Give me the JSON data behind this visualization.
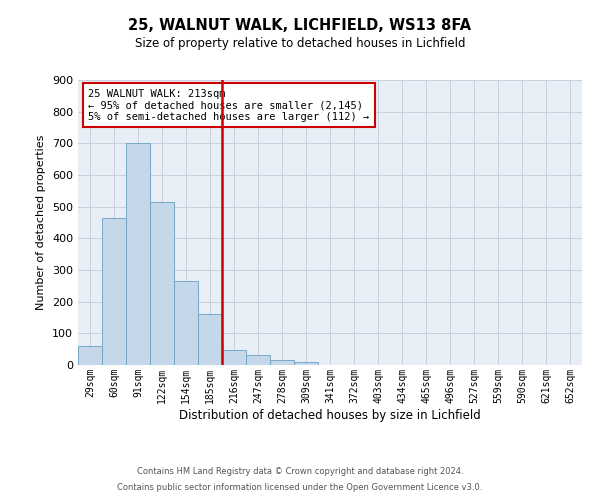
{
  "title1": "25, WALNUT WALK, LICHFIELD, WS13 8FA",
  "title2": "Size of property relative to detached houses in Lichfield",
  "xlabel": "Distribution of detached houses by size in Lichfield",
  "ylabel": "Number of detached properties",
  "bin_labels": [
    "29sqm",
    "60sqm",
    "91sqm",
    "122sqm",
    "154sqm",
    "185sqm",
    "216sqm",
    "247sqm",
    "278sqm",
    "309sqm",
    "341sqm",
    "372sqm",
    "403sqm",
    "434sqm",
    "465sqm",
    "496sqm",
    "527sqm",
    "559sqm",
    "590sqm",
    "621sqm",
    "652sqm"
  ],
  "bar_heights": [
    60,
    465,
    700,
    515,
    265,
    160,
    48,
    33,
    15,
    10,
    0,
    0,
    0,
    0,
    0,
    0,
    0,
    0,
    0,
    0,
    0
  ],
  "bar_color": "#c5d8ea",
  "bar_edge_color": "#6a9fc0",
  "grid_color": "#c8d0dc",
  "background_color": "#e8eef5",
  "vline_color": "#cc0000",
  "annotation_text": "25 WALNUT WALK: 213sqm\n← 95% of detached houses are smaller (2,145)\n5% of semi-detached houses are larger (112) →",
  "annotation_box_edgecolor": "#cc0000",
  "ylim": [
    0,
    900
  ],
  "yticks": [
    0,
    100,
    200,
    300,
    400,
    500,
    600,
    700,
    800,
    900
  ],
  "footnote1": "Contains HM Land Registry data © Crown copyright and database right 2024.",
  "footnote2": "Contains public sector information licensed under the Open Government Licence v3.0."
}
